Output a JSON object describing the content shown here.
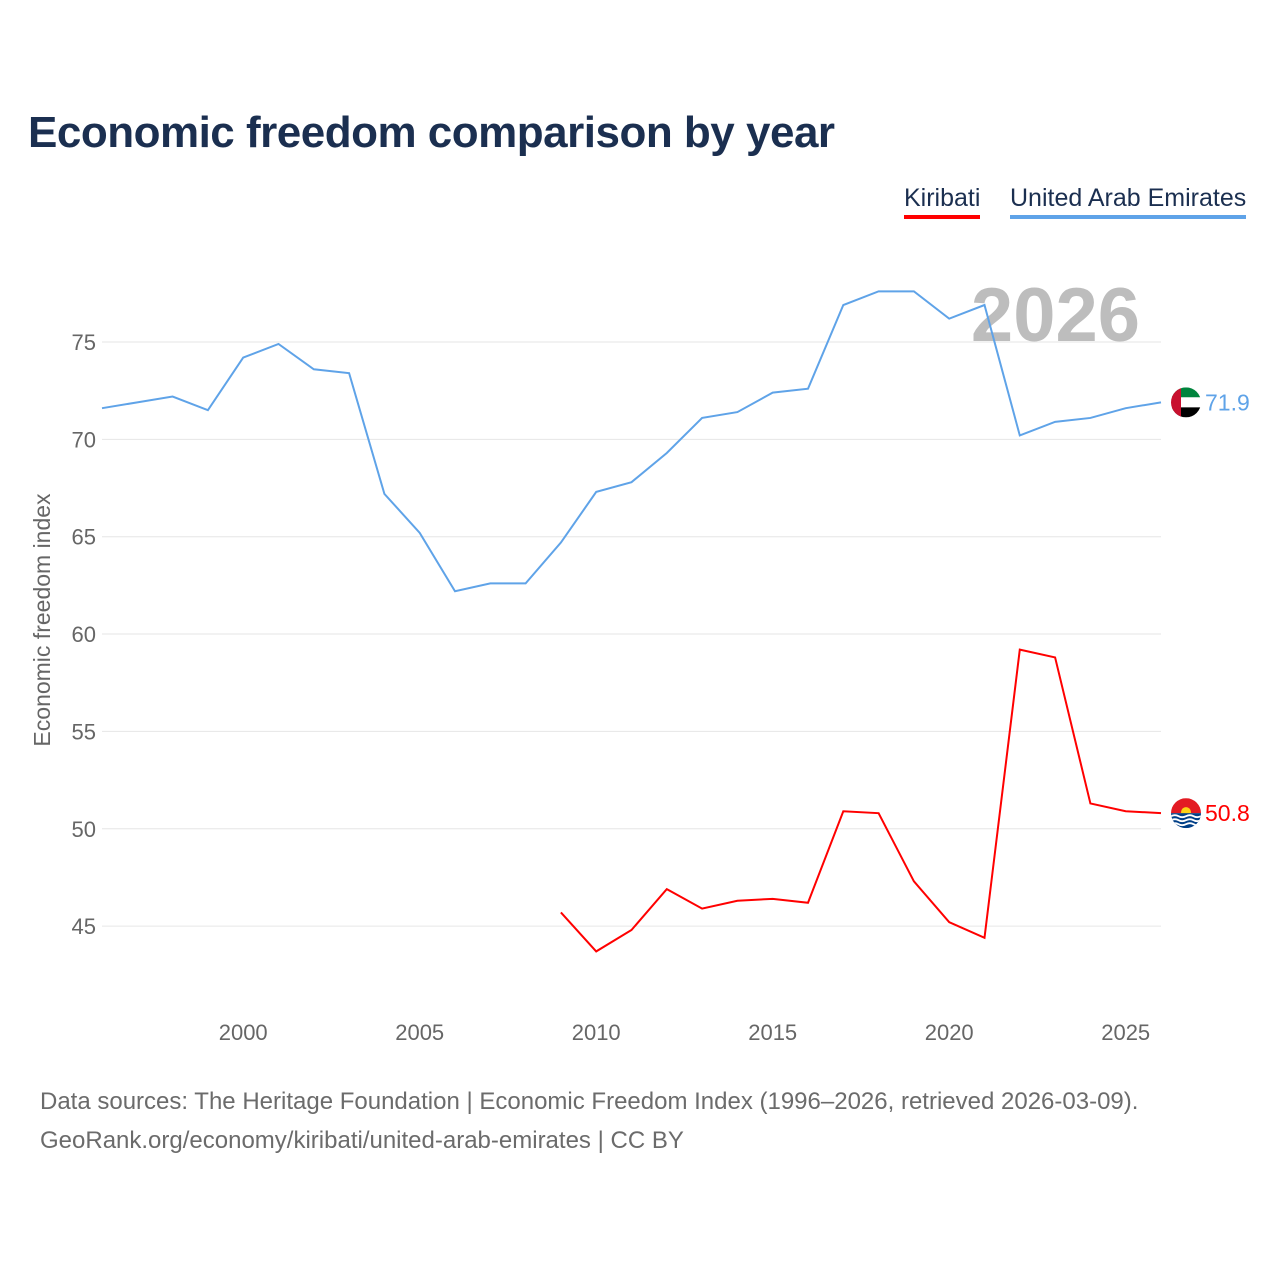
{
  "title": "Economic freedom comparison by year",
  "legend": [
    {
      "label": "Kiribati",
      "color": "#ff0000"
    },
    {
      "label": "United Arab Emirates",
      "color": "#5fa3e8"
    }
  ],
  "watermark_year": "2026",
  "footer": {
    "line1": "Data sources: The Heritage Foundation | Economic Freedom Index (1996–2026, retrieved 2026-03-09).",
    "line2": "GeoRank.org/economy/kiribati/united-arab-emirates | CC BY"
  },
  "chart_data": {
    "type": "line",
    "title": "Economic freedom comparison by year",
    "xlabel": "",
    "ylabel": "Economic freedom index",
    "xlim": [
      1996,
      2026
    ],
    "ylim": [
      41,
      79
    ],
    "xticks": [
      "2000",
      "2005",
      "2010",
      "2015",
      "2020",
      "2025"
    ],
    "yticks": [
      "45",
      "50",
      "55",
      "60",
      "65",
      "70",
      "75"
    ],
    "grid": true,
    "legend_position": "top-right",
    "series": [
      {
        "name": "United Arab Emirates",
        "color": "#5fa3e8",
        "end_label": "71.9",
        "x": [
          1996,
          1997,
          1998,
          1999,
          2000,
          2001,
          2002,
          2003,
          2004,
          2005,
          2006,
          2007,
          2008,
          2009,
          2010,
          2011,
          2012,
          2013,
          2014,
          2015,
          2016,
          2017,
          2018,
          2019,
          2020,
          2021,
          2022,
          2023,
          2024,
          2025,
          2026
        ],
        "values": [
          71.6,
          71.9,
          72.2,
          71.5,
          74.2,
          74.9,
          73.6,
          73.4,
          67.2,
          65.2,
          62.2,
          62.6,
          62.6,
          64.7,
          67.3,
          67.8,
          69.3,
          71.1,
          71.4,
          72.4,
          72.6,
          76.9,
          77.6,
          77.6,
          76.2,
          76.9,
          70.2,
          70.9,
          71.1,
          71.6,
          71.9
        ]
      },
      {
        "name": "Kiribati",
        "color": "#ff0000",
        "end_label": "50.8",
        "x": [
          2009,
          2010,
          2011,
          2012,
          2013,
          2014,
          2015,
          2016,
          2017,
          2018,
          2019,
          2020,
          2021,
          2022,
          2023,
          2024,
          2025,
          2026
        ],
        "values": [
          45.7,
          43.7,
          44.8,
          46.9,
          45.9,
          46.3,
          46.4,
          46.2,
          50.9,
          50.8,
          47.3,
          45.2,
          44.4,
          59.2,
          58.8,
          51.3,
          50.9,
          50.8
        ]
      }
    ]
  }
}
